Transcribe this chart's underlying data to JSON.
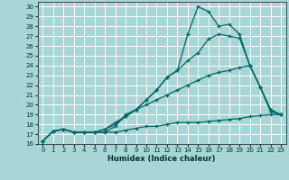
{
  "title": "",
  "xlabel": "Humidex (Indice chaleur)",
  "background_color": "#a8d5d5",
  "grid_color": "#ffffff",
  "line_color": "#006666",
  "xlim": [
    -0.5,
    23.5
  ],
  "ylim": [
    16,
    30.5
  ],
  "xticks": [
    0,
    1,
    2,
    3,
    4,
    5,
    6,
    7,
    8,
    9,
    10,
    11,
    12,
    13,
    14,
    15,
    16,
    17,
    18,
    19,
    20,
    21,
    22,
    23
  ],
  "yticks": [
    16,
    17,
    18,
    19,
    20,
    21,
    22,
    23,
    24,
    25,
    26,
    27,
    28,
    29,
    30
  ],
  "lines": [
    {
      "x": [
        0,
        1,
        2,
        3,
        4,
        5,
        6,
        7,
        8,
        9,
        10,
        11,
        12,
        13,
        14,
        15,
        16,
        17,
        18,
        19,
        20,
        21,
        22,
        23
      ],
      "y": [
        16.3,
        17.3,
        17.5,
        17.2,
        17.2,
        17.2,
        17.2,
        17.2,
        17.4,
        17.6,
        17.8,
        17.8,
        18.0,
        18.2,
        18.2,
        18.2,
        18.3,
        18.4,
        18.5,
        18.6,
        18.8,
        18.9,
        19.0,
        19.0
      ]
    },
    {
      "x": [
        0,
        1,
        2,
        3,
        4,
        5,
        6,
        7,
        8,
        9,
        10,
        11,
        12,
        13,
        14,
        15,
        16,
        17,
        18,
        19,
        20,
        21,
        22,
        23
      ],
      "y": [
        16.3,
        17.3,
        17.5,
        17.2,
        17.2,
        17.2,
        17.2,
        17.8,
        19.0,
        19.5,
        20.0,
        20.5,
        21.0,
        21.5,
        22.0,
        22.5,
        23.0,
        23.3,
        23.5,
        23.8,
        24.0,
        21.8,
        19.3,
        19.0
      ]
    },
    {
      "x": [
        0,
        1,
        2,
        3,
        4,
        5,
        6,
        7,
        8,
        9,
        10,
        11,
        12,
        13,
        14,
        15,
        16,
        17,
        18,
        19,
        20,
        21,
        22,
        23
      ],
      "y": [
        16.3,
        17.3,
        17.5,
        17.2,
        17.2,
        17.2,
        17.5,
        18.0,
        18.8,
        19.5,
        20.5,
        21.5,
        22.8,
        23.5,
        24.5,
        25.3,
        26.7,
        27.2,
        27.0,
        26.8,
        24.0,
        21.8,
        19.5,
        19.0
      ]
    },
    {
      "x": [
        0,
        1,
        2,
        3,
        4,
        5,
        6,
        7,
        8,
        9,
        10,
        11,
        12,
        13,
        14,
        15,
        16,
        17,
        18,
        19,
        20,
        21,
        22,
        23
      ],
      "y": [
        16.3,
        17.3,
        17.5,
        17.2,
        17.2,
        17.2,
        17.5,
        18.2,
        18.8,
        19.5,
        20.5,
        21.5,
        22.8,
        23.5,
        27.2,
        30.0,
        29.5,
        28.0,
        28.2,
        27.2,
        24.0,
        21.8,
        19.5,
        19.0
      ]
    }
  ]
}
